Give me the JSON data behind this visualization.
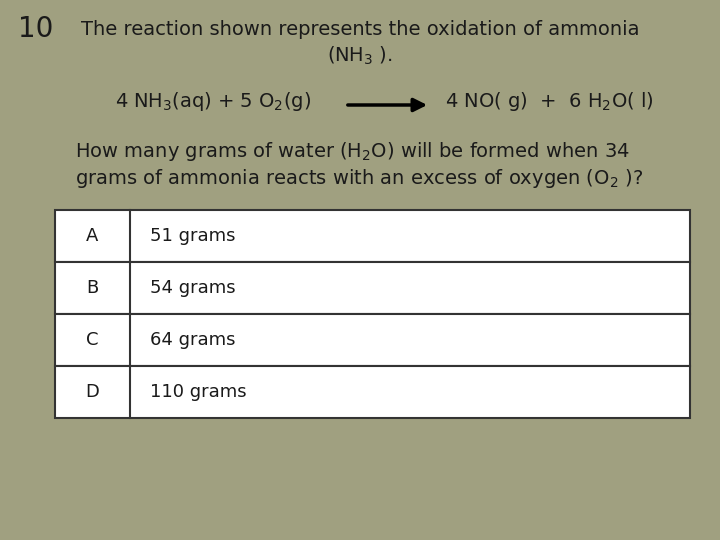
{
  "question_number": "10",
  "bg_color": "#a0a080",
  "table_bg": "#ffffff",
  "table_border": "#333333",
  "text_color": "#1a1a1a",
  "font_size_title": 14,
  "font_size_reaction": 14,
  "font_size_question": 14,
  "font_size_options": 13,
  "font_size_qnum": 20,
  "options": [
    {
      "label": "A",
      "text": "51 grams"
    },
    {
      "label": "B",
      "text": "54 grams"
    },
    {
      "label": "C",
      "text": "64 grams"
    },
    {
      "label": "D",
      "text": "110 grams"
    }
  ]
}
